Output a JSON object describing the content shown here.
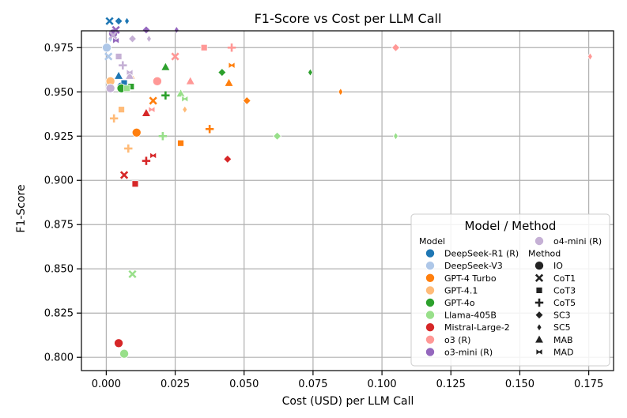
{
  "chart_data": {
    "type": "scatter",
    "title": "F1-Score vs Cost per LLM Call",
    "xlabel": "Cost (USD) per LLM Call",
    "ylabel": "F1-Score",
    "xlim": [
      -0.009,
      0.184
    ],
    "ylim": [
      0.7925,
      0.9845
    ],
    "xticks": [
      0.0,
      0.025,
      0.05,
      0.075,
      0.1,
      0.125,
      0.15,
      0.175
    ],
    "xtick_labels": [
      "0.000",
      "0.025",
      "0.050",
      "0.075",
      "0.100",
      "0.125",
      "0.150",
      "0.175"
    ],
    "yticks": [
      0.8,
      0.825,
      0.85,
      0.875,
      0.9,
      0.925,
      0.95,
      0.975
    ],
    "ytick_labels": [
      "0.800",
      "0.825",
      "0.850",
      "0.875",
      "0.900",
      "0.925",
      "0.950",
      "0.975"
    ],
    "grid": true,
    "legend": {
      "title": "Model / Method",
      "position": "bottom-right",
      "model_header": "Model",
      "method_header": "Method",
      "models": [
        {
          "name": "DeepSeek-R1 (R)",
          "color": "#1f77b4"
        },
        {
          "name": "DeepSeek-V3",
          "color": "#aec7e8"
        },
        {
          "name": "GPT-4 Turbo",
          "color": "#ff7f0e"
        },
        {
          "name": "GPT-4.1",
          "color": "#ffbb78"
        },
        {
          "name": "GPT-4o",
          "color": "#2ca02c"
        },
        {
          "name": "Llama-405B",
          "color": "#98df8a"
        },
        {
          "name": "Mistral-Large-2",
          "color": "#d62728"
        },
        {
          "name": "o3 (R)",
          "color": "#ff9896"
        },
        {
          "name": "o3-mini (R)",
          "color": "#9467bd"
        },
        {
          "name": "o4-mini (R)",
          "color": "#c5b0d5"
        }
      ],
      "methods": [
        {
          "name": "IO",
          "marker": "circle"
        },
        {
          "name": "CoT1",
          "marker": "x"
        },
        {
          "name": "CoT3",
          "marker": "square"
        },
        {
          "name": "CoT5",
          "marker": "plus"
        },
        {
          "name": "SC3",
          "marker": "diamond"
        },
        {
          "name": "SC5",
          "marker": "thin_diamond"
        },
        {
          "name": "MAB",
          "marker": "triangle"
        },
        {
          "name": "MAD",
          "marker": "bowtie"
        }
      ]
    },
    "points": [
      {
        "model": "DeepSeek-R1 (R)",
        "method": "CoT1",
        "x": 0.0012,
        "y": 0.99
      },
      {
        "model": "DeepSeek-R1 (R)",
        "method": "SC3",
        "x": 0.0045,
        "y": 0.99
      },
      {
        "model": "DeepSeek-R1 (R)",
        "method": "SC5",
        "x": 0.0075,
        "y": 0.99
      },
      {
        "model": "DeepSeek-R1 (R)",
        "method": "MAB",
        "x": 0.0045,
        "y": 0.959
      },
      {
        "model": "DeepSeek-R1 (R)",
        "method": "IO",
        "x": 0.0055,
        "y": 0.953
      },
      {
        "model": "DeepSeek-R1 (R)",
        "method": "CoT3",
        "x": 0.0065,
        "y": 0.955
      },
      {
        "model": "DeepSeek-V3",
        "method": "IO",
        "x": 0.0002,
        "y": 0.975
      },
      {
        "model": "DeepSeek-V3",
        "method": "CoT1",
        "x": 0.0008,
        "y": 0.97
      },
      {
        "model": "DeepSeek-V3",
        "method": "SC5",
        "x": 0.0015,
        "y": 0.98
      },
      {
        "model": "GPT-4 Turbo",
        "method": "IO",
        "x": 0.011,
        "y": 0.927
      },
      {
        "model": "GPT-4 Turbo",
        "method": "CoT1",
        "x": 0.017,
        "y": 0.945
      },
      {
        "model": "GPT-4 Turbo",
        "method": "CoT5",
        "x": 0.0375,
        "y": 0.929
      },
      {
        "model": "GPT-4 Turbo",
        "method": "MAB",
        "x": 0.0445,
        "y": 0.955
      },
      {
        "model": "GPT-4 Turbo",
        "method": "SC3",
        "x": 0.051,
        "y": 0.945
      },
      {
        "model": "GPT-4 Turbo",
        "method": "SC5",
        "x": 0.085,
        "y": 0.95
      },
      {
        "model": "GPT-4 Turbo",
        "method": "MAD",
        "x": 0.0455,
        "y": 0.965
      },
      {
        "model": "GPT-4 Turbo",
        "method": "CoT3",
        "x": 0.027,
        "y": 0.921
      },
      {
        "model": "GPT-4.1",
        "method": "IO",
        "x": 0.0015,
        "y": 0.956
      },
      {
        "model": "GPT-4.1",
        "method": "CoT5",
        "x": 0.0028,
        "y": 0.935
      },
      {
        "model": "GPT-4.1",
        "method": "CoT3",
        "x": 0.0055,
        "y": 0.94
      },
      {
        "model": "GPT-4.1",
        "method": "CoT5",
        "x": 0.008,
        "y": 0.918
      },
      {
        "model": "GPT-4.1",
        "method": "MAB",
        "x": 0.009,
        "y": 0.959
      },
      {
        "model": "GPT-4.1",
        "method": "SC5",
        "x": 0.0285,
        "y": 0.94
      },
      {
        "model": "GPT-4o",
        "method": "IO",
        "x": 0.0055,
        "y": 0.952
      },
      {
        "model": "GPT-4o",
        "method": "CoT3",
        "x": 0.009,
        "y": 0.953
      },
      {
        "model": "GPT-4o",
        "method": "MAB",
        "x": 0.0215,
        "y": 0.964
      },
      {
        "model": "GPT-4o",
        "method": "SC3",
        "x": 0.042,
        "y": 0.961
      },
      {
        "model": "GPT-4o",
        "method": "SC5",
        "x": 0.074,
        "y": 0.961
      },
      {
        "model": "GPT-4o",
        "method": "CoT5",
        "x": 0.0215,
        "y": 0.948
      },
      {
        "model": "Llama-405B",
        "method": "IO",
        "x": 0.0065,
        "y": 0.802
      },
      {
        "model": "Llama-405B",
        "method": "CoT1",
        "x": 0.0095,
        "y": 0.847
      },
      {
        "model": "Llama-405B",
        "method": "CoT5",
        "x": 0.0205,
        "y": 0.925
      },
      {
        "model": "Llama-405B",
        "method": "MAB",
        "x": 0.027,
        "y": 0.949
      },
      {
        "model": "Llama-405B",
        "method": "SC3",
        "x": 0.062,
        "y": 0.925
      },
      {
        "model": "Llama-405B",
        "method": "SC5",
        "x": 0.105,
        "y": 0.925
      },
      {
        "model": "Llama-405B",
        "method": "CoT3",
        "x": 0.0075,
        "y": 0.952
      },
      {
        "model": "Llama-405B",
        "method": "MAD",
        "x": 0.0285,
        "y": 0.946
      },
      {
        "model": "Mistral-Large-2",
        "method": "IO",
        "x": 0.0045,
        "y": 0.808
      },
      {
        "model": "Mistral-Large-2",
        "method": "CoT1",
        "x": 0.0065,
        "y": 0.903
      },
      {
        "model": "Mistral-Large-2",
        "method": "CoT3",
        "x": 0.0105,
        "y": 0.898
      },
      {
        "model": "Mistral-Large-2",
        "method": "CoT5",
        "x": 0.0145,
        "y": 0.911
      },
      {
        "model": "Mistral-Large-2",
        "method": "MAD",
        "x": 0.017,
        "y": 0.914
      },
      {
        "model": "Mistral-Large-2",
        "method": "MAB",
        "x": 0.0145,
        "y": 0.938
      },
      {
        "model": "Mistral-Large-2",
        "method": "SC3",
        "x": 0.044,
        "y": 0.912
      },
      {
        "model": "o3 (R)",
        "method": "IO",
        "x": 0.0185,
        "y": 0.956
      },
      {
        "model": "o3 (R)",
        "method": "CoT1",
        "x": 0.025,
        "y": 0.97
      },
      {
        "model": "o3 (R)",
        "method": "MAB",
        "x": 0.0305,
        "y": 0.956
      },
      {
        "model": "o3 (R)",
        "method": "CoT3",
        "x": 0.0355,
        "y": 0.975
      },
      {
        "model": "o3 (R)",
        "method": "CoT5",
        "x": 0.0455,
        "y": 0.975
      },
      {
        "model": "o3 (R)",
        "method": "SC3",
        "x": 0.105,
        "y": 0.975
      },
      {
        "model": "o3 (R)",
        "method": "SC5",
        "x": 0.1755,
        "y": 0.97
      },
      {
        "model": "o3 (R)",
        "method": "MAD",
        "x": 0.0165,
        "y": 0.94
      },
      {
        "model": "o3-mini (R)",
        "method": "IO",
        "x": 0.0025,
        "y": 0.983
      },
      {
        "model": "o3-mini (R)",
        "method": "CoT1",
        "x": 0.0035,
        "y": 0.985
      },
      {
        "model": "o3-mini (R)",
        "method": "SC3",
        "x": 0.0145,
        "y": 0.985
      },
      {
        "model": "o3-mini (R)",
        "method": "SC5",
        "x": 0.0255,
        "y": 0.985
      },
      {
        "model": "o3-mini (R)",
        "method": "MAD",
        "x": 0.0035,
        "y": 0.979
      },
      {
        "model": "o4-mini (R)",
        "method": "IO",
        "x": 0.0015,
        "y": 0.952
      },
      {
        "model": "o4-mini (R)",
        "method": "CoT1",
        "x": 0.0025,
        "y": 0.982
      },
      {
        "model": "o4-mini (R)",
        "method": "CoT3",
        "x": 0.0045,
        "y": 0.97
      },
      {
        "model": "o4-mini (R)",
        "method": "CoT5",
        "x": 0.006,
        "y": 0.965
      },
      {
        "model": "o4-mini (R)",
        "method": "SC3",
        "x": 0.0095,
        "y": 0.98
      },
      {
        "model": "o4-mini (R)",
        "method": "SC5",
        "x": 0.0155,
        "y": 0.98
      },
      {
        "model": "o4-mini (R)",
        "method": "MAB",
        "x": 0.0085,
        "y": 0.959
      },
      {
        "model": "o4-mini (R)",
        "method": "MAD",
        "x": 0.0085,
        "y": 0.961
      }
    ]
  }
}
